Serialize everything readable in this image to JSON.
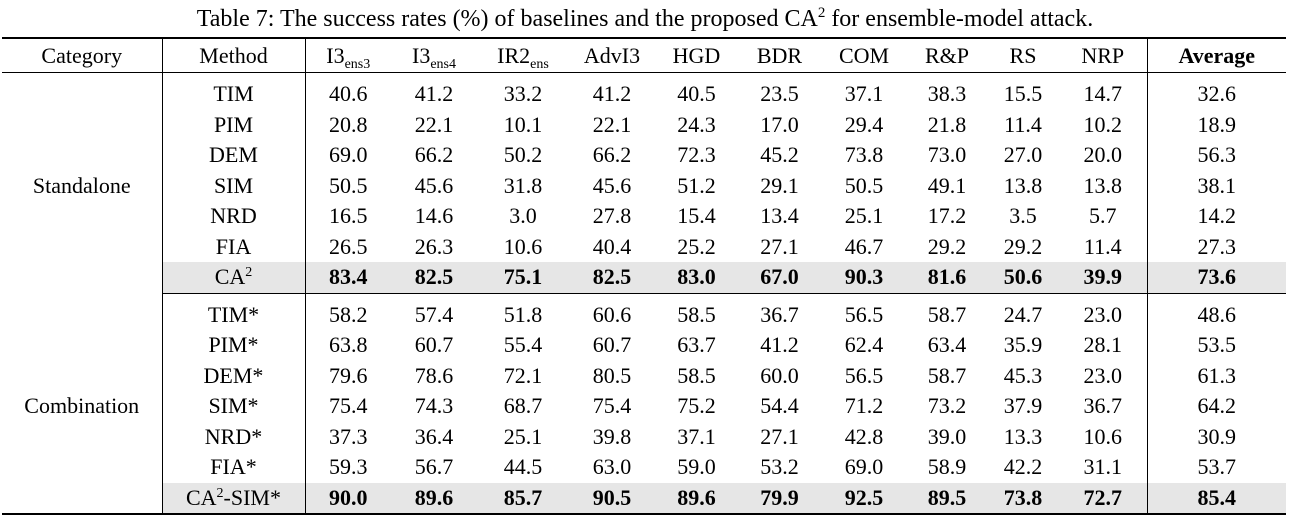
{
  "caption": {
    "prefix": "Table 7: The success rates (%) of baselines and the proposed CA",
    "sup": "2",
    "suffix": " for ensemble-model attack."
  },
  "columns": [
    {
      "base": "Category",
      "sub": ""
    },
    {
      "base": "Method",
      "sub": ""
    },
    {
      "base": "I3",
      "sub": "ens3"
    },
    {
      "base": "I3",
      "sub": "ens4"
    },
    {
      "base": "IR2",
      "sub": "ens"
    },
    {
      "base": "AdvI3",
      "sub": ""
    },
    {
      "base": "HGD",
      "sub": ""
    },
    {
      "base": "BDR",
      "sub": ""
    },
    {
      "base": "COM",
      "sub": ""
    },
    {
      "base": "R&P",
      "sub": ""
    },
    {
      "base": "RS",
      "sub": ""
    },
    {
      "base": "NRP",
      "sub": ""
    },
    {
      "base": "Average",
      "sub": ""
    }
  ],
  "groups": [
    {
      "category": "Standalone",
      "rows": [
        {
          "method": "TIM",
          "values": [
            "40.6",
            "41.2",
            "33.2",
            "41.2",
            "40.5",
            "23.5",
            "37.1",
            "38.3",
            "15.5",
            "14.7",
            "32.6"
          ]
        },
        {
          "method": "PIM",
          "values": [
            "20.8",
            "22.1",
            "10.1",
            "22.1",
            "24.3",
            "17.0",
            "29.4",
            "21.8",
            "11.4",
            "10.2",
            "18.9"
          ]
        },
        {
          "method": "DEM",
          "values": [
            "69.0",
            "66.2",
            "50.2",
            "66.2",
            "72.3",
            "45.2",
            "73.8",
            "73.0",
            "27.0",
            "20.0",
            "56.3"
          ]
        },
        {
          "method": "SIM",
          "values": [
            "50.5",
            "45.6",
            "31.8",
            "45.6",
            "51.2",
            "29.1",
            "50.5",
            "49.1",
            "13.8",
            "13.8",
            "38.1"
          ]
        },
        {
          "method": "NRD",
          "values": [
            "16.5",
            "14.6",
            "3.0",
            "27.8",
            "15.4",
            "13.4",
            "25.1",
            "17.2",
            "3.5",
            "5.7",
            "14.2"
          ]
        },
        {
          "method": "FIA",
          "values": [
            "26.5",
            "26.3",
            "10.6",
            "40.4",
            "25.2",
            "27.1",
            "46.7",
            "29.2",
            "29.2",
            "11.4",
            "27.3"
          ]
        }
      ],
      "highlight": {
        "method_base": "CA",
        "method_sup": "2",
        "method_suffix": "",
        "values": [
          "83.4",
          "82.5",
          "75.1",
          "82.5",
          "83.0",
          "67.0",
          "90.3",
          "81.6",
          "50.6",
          "39.9",
          "73.6"
        ]
      }
    },
    {
      "category": "Combination",
      "rows": [
        {
          "method": "TIM*",
          "values": [
            "58.2",
            "57.4",
            "51.8",
            "60.6",
            "58.5",
            "36.7",
            "56.5",
            "58.7",
            "24.7",
            "23.0",
            "48.6"
          ]
        },
        {
          "method": "PIM*",
          "values": [
            "63.8",
            "60.7",
            "55.4",
            "60.7",
            "63.7",
            "41.2",
            "62.4",
            "63.4",
            "35.9",
            "28.1",
            "53.5"
          ]
        },
        {
          "method": "DEM*",
          "values": [
            "79.6",
            "78.6",
            "72.1",
            "80.5",
            "58.5",
            "60.0",
            "56.5",
            "58.7",
            "45.3",
            "23.0",
            "61.3"
          ]
        },
        {
          "method": "SIM*",
          "values": [
            "75.4",
            "74.3",
            "68.7",
            "75.4",
            "75.2",
            "54.4",
            "71.2",
            "73.2",
            "37.9",
            "36.7",
            "64.2"
          ]
        },
        {
          "method": "NRD*",
          "values": [
            "37.3",
            "36.4",
            "25.1",
            "39.8",
            "37.1",
            "27.1",
            "42.8",
            "39.0",
            "13.3",
            "10.6",
            "30.9"
          ]
        },
        {
          "method": "FIA*",
          "values": [
            "59.3",
            "56.7",
            "44.5",
            "63.0",
            "59.0",
            "53.2",
            "69.0",
            "58.9",
            "42.2",
            "31.1",
            "53.7"
          ]
        }
      ],
      "highlight": {
        "method_base": "CA",
        "method_sup": "2",
        "method_suffix": "-SIM*",
        "values": [
          "90.0",
          "89.6",
          "85.7",
          "90.5",
          "89.6",
          "79.9",
          "92.5",
          "89.5",
          "73.8",
          "72.7",
          "85.4"
        ]
      }
    }
  ]
}
